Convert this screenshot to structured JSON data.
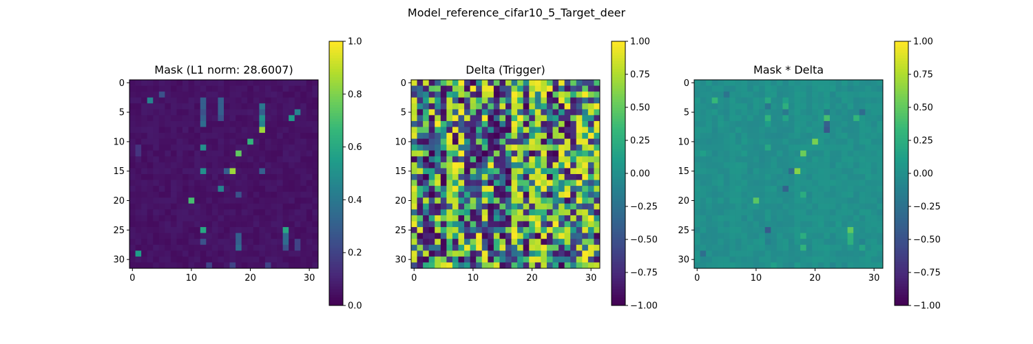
{
  "figure": {
    "suptitle": "Model_reference_cifar10_5_Target_deer"
  },
  "chart_data": [
    {
      "type": "heatmap",
      "title": "Mask (L1 norm: 28.6007)",
      "colormap": "viridis",
      "grid_size": [
        32,
        32
      ],
      "xlim": [
        -0.5,
        31.5
      ],
      "ylim": [
        31.5,
        -0.5
      ],
      "x_ticks": [
        0,
        10,
        20,
        30
      ],
      "y_ticks": [
        0,
        5,
        10,
        15,
        20,
        25,
        30
      ],
      "value_range": [
        0,
        1
      ],
      "colorbar_ticks": [
        "0.0",
        "0.2",
        "0.4",
        "0.6",
        "0.8",
        "1.0"
      ],
      "baseline": 0.05,
      "highlights": [
        {
          "x": 3,
          "y": 3,
          "v": 0.45
        },
        {
          "x": 5,
          "y": 2,
          "v": 0.25
        },
        {
          "x": 12,
          "y": 3,
          "v": 0.3
        },
        {
          "x": 12,
          "y": 4,
          "v": 0.3
        },
        {
          "x": 12,
          "y": 5,
          "v": 0.25
        },
        {
          "x": 12,
          "y": 6,
          "v": 0.3
        },
        {
          "x": 12,
          "y": 7,
          "v": 0.35
        },
        {
          "x": 12,
          "y": 11,
          "v": 0.5
        },
        {
          "x": 12,
          "y": 15,
          "v": 0.5
        },
        {
          "x": 12,
          "y": 25,
          "v": 0.6
        },
        {
          "x": 12,
          "y": 27,
          "v": 0.25
        },
        {
          "x": 15,
          "y": 3,
          "v": 0.3
        },
        {
          "x": 15,
          "y": 4,
          "v": 0.3
        },
        {
          "x": 15,
          "y": 5,
          "v": 0.3
        },
        {
          "x": 15,
          "y": 6,
          "v": 0.25
        },
        {
          "x": 15,
          "y": 18,
          "v": 0.45
        },
        {
          "x": 16,
          "y": 15,
          "v": 0.3
        },
        {
          "x": 17,
          "y": 15,
          "v": 0.85
        },
        {
          "x": 18,
          "y": 12,
          "v": 0.75
        },
        {
          "x": 20,
          "y": 10,
          "v": 0.65
        },
        {
          "x": 10,
          "y": 20,
          "v": 0.7
        },
        {
          "x": 18,
          "y": 19,
          "v": 0.25
        },
        {
          "x": 22,
          "y": 4,
          "v": 0.4
        },
        {
          "x": 22,
          "y": 5,
          "v": 0.3
        },
        {
          "x": 22,
          "y": 6,
          "v": 0.5
        },
        {
          "x": 22,
          "y": 7,
          "v": 0.45
        },
        {
          "x": 22,
          "y": 8,
          "v": 0.85
        },
        {
          "x": 22,
          "y": 15,
          "v": 0.3
        },
        {
          "x": 18,
          "y": 26,
          "v": 0.3
        },
        {
          "x": 18,
          "y": 27,
          "v": 0.3
        },
        {
          "x": 18,
          "y": 28,
          "v": 0.35
        },
        {
          "x": 27,
          "y": 6,
          "v": 0.55
        },
        {
          "x": 28,
          "y": 5,
          "v": 0.45
        },
        {
          "x": 26,
          "y": 25,
          "v": 0.6
        },
        {
          "x": 26,
          "y": 26,
          "v": 0.35
        },
        {
          "x": 26,
          "y": 27,
          "v": 0.35
        },
        {
          "x": 26,
          "y": 28,
          "v": 0.25
        },
        {
          "x": 28,
          "y": 27,
          "v": 0.2
        },
        {
          "x": 28,
          "y": 28,
          "v": 0.2
        },
        {
          "x": 1,
          "y": 29,
          "v": 0.55
        },
        {
          "x": 13,
          "y": 31,
          "v": 0.2
        },
        {
          "x": 17,
          "y": 31,
          "v": 0.2
        },
        {
          "x": 23,
          "y": 31,
          "v": 0.2
        },
        {
          "x": 1,
          "y": 11,
          "v": 0.15
        },
        {
          "x": 1,
          "y": 12,
          "v": 0.15
        }
      ]
    },
    {
      "type": "heatmap",
      "title": "Delta (Trigger)",
      "colormap": "viridis",
      "grid_size": [
        32,
        32
      ],
      "xlim": [
        -0.5,
        31.5
      ],
      "ylim": [
        31.5,
        -0.5
      ],
      "x_ticks": [
        0,
        10,
        20,
        30
      ],
      "y_ticks": [
        0,
        5,
        10,
        15,
        20,
        25,
        30
      ],
      "value_range": [
        -1,
        1
      ],
      "colorbar_ticks": [
        "1.00",
        "0.75",
        "0.50",
        "0.25",
        "0.00",
        "−0.25",
        "−0.50",
        "−0.75",
        "−1.00"
      ],
      "pattern_seed": 7
    },
    {
      "type": "heatmap",
      "title": "Mask * Delta",
      "colormap": "viridis",
      "grid_size": [
        32,
        32
      ],
      "xlim": [
        -0.5,
        31.5
      ],
      "ylim": [
        31.5,
        -0.5
      ],
      "x_ticks": [
        0,
        10,
        20,
        30
      ],
      "y_ticks": [
        0,
        5,
        10,
        15,
        20,
        25,
        30
      ],
      "value_range": [
        -1,
        1
      ],
      "colorbar_ticks": [
        "1.00",
        "0.75",
        "0.50",
        "0.25",
        "0.00",
        "−0.25",
        "−0.50",
        "−0.75",
        "−1.00"
      ],
      "derived_from": "mask * delta"
    }
  ]
}
